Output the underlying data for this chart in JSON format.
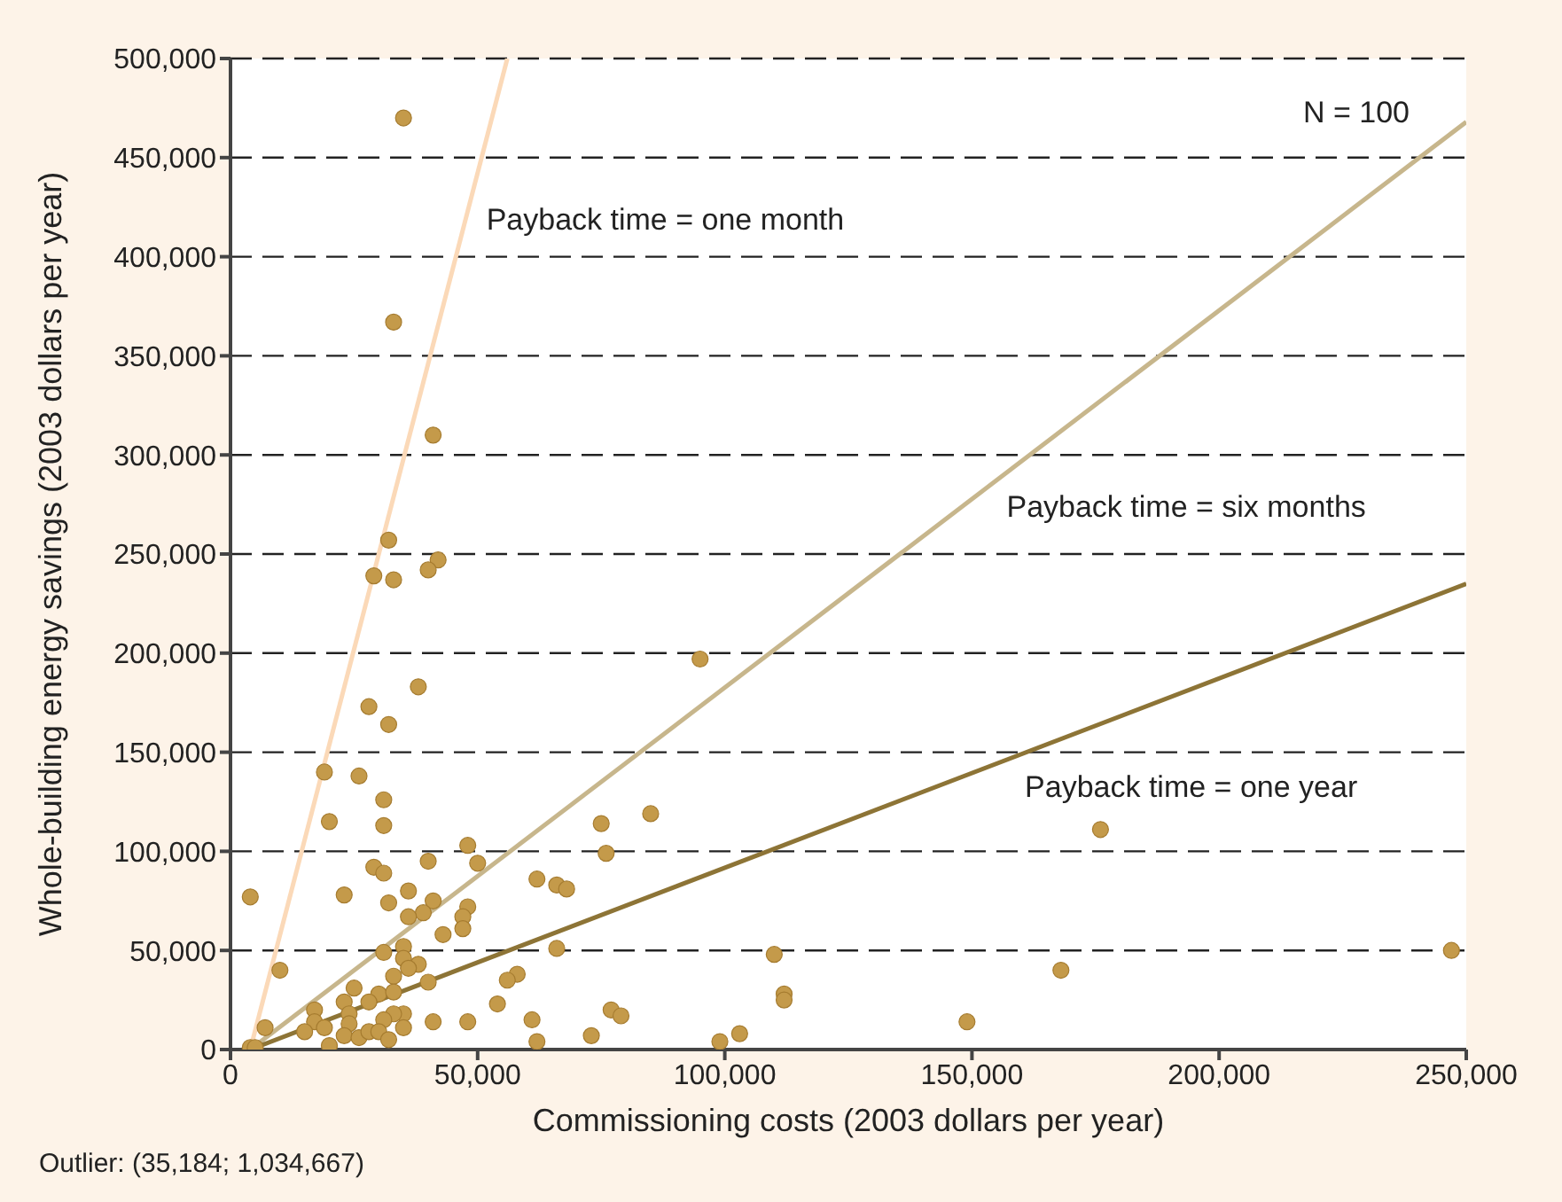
{
  "chart_data": {
    "type": "scatter",
    "xlabel": "Commissioning costs (2003 dollars per year)",
    "ylabel": "Whole-building energy savings (2003 dollars per year)",
    "xlim": [
      0,
      250000
    ],
    "xticks": [
      0,
      {
        "value": 50000,
        "label": "50,000"
      },
      {
        "value": 100000,
        "label": "100,000"
      },
      {
        "value": 150000,
        "label": "150,000"
      },
      {
        "value": 200000,
        "label": "200,000"
      },
      {
        "value": 250000,
        "label": "250,000"
      }
    ],
    "ylim": [
      0,
      500000
    ],
    "yticks": [
      0,
      {
        "value": 50000,
        "label": "50,000"
      },
      {
        "value": 100000,
        "label": "100,000"
      },
      {
        "value": 150000,
        "label": "150,000"
      },
      {
        "value": 200000,
        "label": "200,000"
      },
      {
        "value": 250000,
        "label": "250,000"
      },
      {
        "value": 300000,
        "label": "300,000"
      },
      {
        "value": 350000,
        "label": "350,000"
      },
      {
        "value": 400000,
        "label": "400,000"
      },
      {
        "value": 450000,
        "label": "450,000"
      },
      {
        "value": 500000,
        "label": "500,000"
      }
    ],
    "grid": "y",
    "series": [
      {
        "color": "#c49a4a",
        "x": [
          4000,
          5000,
          4000,
          7000,
          10000,
          35000,
          33000,
          41000,
          32000,
          29000,
          33000,
          42000,
          40000,
          28000,
          38000,
          32000,
          19000,
          26000,
          31000,
          20000,
          31000,
          95000,
          75000,
          85000,
          76000,
          176000,
          48000,
          50000,
          23000,
          29000,
          31000,
          40000,
          36000,
          32000,
          41000,
          39000,
          36000,
          48000,
          47000,
          47000,
          43000,
          31000,
          35000,
          35000,
          38000,
          36000,
          40000,
          33000,
          25000,
          23000,
          30000,
          33000,
          28000,
          17000,
          24000,
          35000,
          33000,
          17000,
          24000,
          31000,
          41000,
          48000,
          15000,
          19000,
          23000,
          26000,
          28000,
          30000,
          32000,
          35000,
          20000,
          62000,
          66000,
          68000,
          66000,
          58000,
          56000,
          54000,
          61000,
          62000,
          110000,
          112000,
          112000,
          73000,
          77000,
          79000,
          99000,
          103000,
          168000,
          247000,
          149000
        ],
        "values": [
          1000,
          1000,
          77000,
          11000,
          40000,
          470000,
          367000,
          310000,
          257000,
          239000,
          237000,
          247000,
          242000,
          173000,
          183000,
          164000,
          140000,
          138000,
          126000,
          115000,
          113000,
          197000,
          114000,
          119000,
          99000,
          111000,
          103000,
          94000,
          78000,
          92000,
          89000,
          95000,
          80000,
          74000,
          75000,
          69000,
          67000,
          72000,
          67000,
          61000,
          58000,
          49000,
          52000,
          46000,
          43000,
          41000,
          34000,
          37000,
          31000,
          24000,
          28000,
          29000,
          24000,
          20000,
          18000,
          18000,
          18000,
          14000,
          13000,
          15000,
          14000,
          14000,
          9000,
          11000,
          7000,
          6000,
          9000,
          9000,
          5000,
          11000,
          2000,
          86000,
          83000,
          81000,
          51000,
          38000,
          35000,
          23000,
          15000,
          4000,
          48000,
          28000,
          25000,
          7000,
          20000,
          17000,
          4000,
          8000,
          40000,
          50000,
          14000
        ]
      },
      {
        "type": "line",
        "name": "Payback time = one month",
        "color": "#fbd9b8",
        "x": [
          4000,
          56000
        ],
        "values": [
          0,
          500000
        ]
      },
      {
        "type": "line",
        "name": "Payback time = six months",
        "color": "#c7b68c",
        "x": [
          4000,
          250000
        ],
        "values": [
          0,
          468000
        ]
      },
      {
        "type": "line",
        "name": "Payback time = one year",
        "color": "#8d7436",
        "x": [
          4000,
          250000
        ],
        "values": [
          0,
          235000
        ]
      }
    ],
    "annotations": [
      "N = 100",
      "Outlier: (35,184; 1,034,667)"
    ]
  }
}
